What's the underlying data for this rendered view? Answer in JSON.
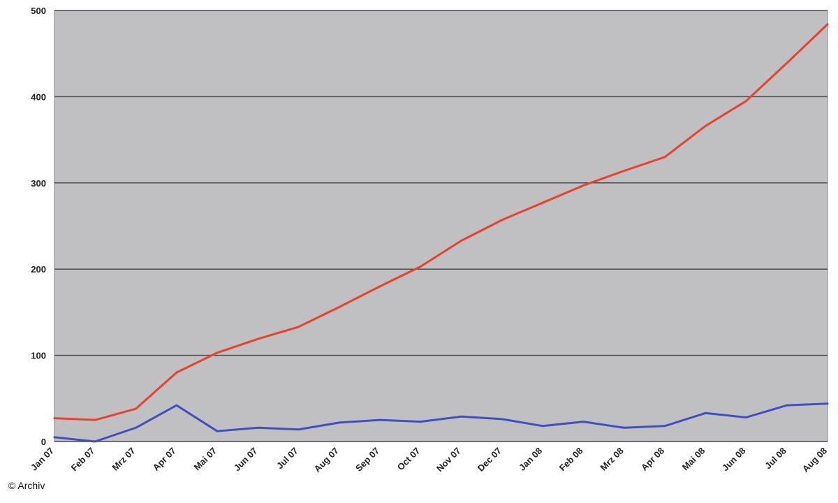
{
  "chart_data": {
    "type": "line",
    "categories": [
      "Jan 07",
      "Feb 07",
      "Mrz 07",
      "Apr 07",
      "Mai 07",
      "Jun 07",
      "Jul 07",
      "Aug 07",
      "Sep 07",
      "Oct 07",
      "Nov 07",
      "Dec 07",
      "Jan 08",
      "Feb 08",
      "Mrz 08",
      "Apr 08",
      "Mai 08",
      "Jun 08",
      "Jul 08",
      "Aug 08"
    ],
    "series": [
      {
        "color": "#e8412c",
        "values": [
          27,
          25,
          38,
          80,
          103,
          119,
          133,
          156,
          180,
          203,
          233,
          257,
          277,
          297,
          314,
          330,
          366,
          395,
          439,
          484
        ]
      },
      {
        "color": "#3f4fc0",
        "values": [
          5,
          0,
          16,
          42,
          12,
          16,
          14,
          22,
          25,
          23,
          29,
          26,
          18,
          23,
          16,
          18,
          33,
          28,
          42,
          44
        ]
      }
    ],
    "ylim": [
      0,
      500
    ],
    "yticks": [
      0,
      100,
      200,
      300,
      400,
      500
    ],
    "grid": true,
    "credit": "© Archiv"
  }
}
